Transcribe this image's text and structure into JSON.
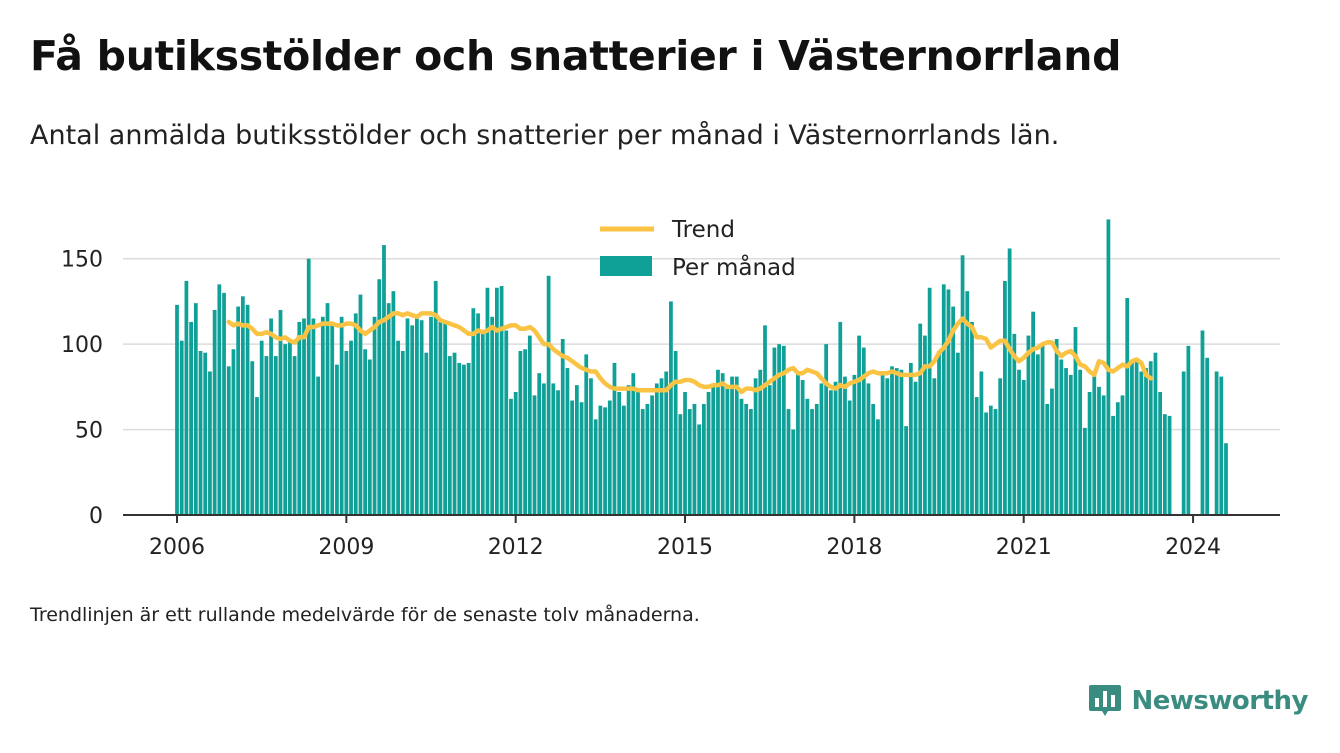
{
  "title": "Få butiksstölder och snatterier i Västernorrland",
  "subtitle": "Antal anmälda butiksstölder och snatterier per månad i Västernorrlands län.",
  "note": "Trendlinjen är ett rullande medelvärde för de senaste tolv månaderna.",
  "brand": {
    "name": "Newsworthy",
    "icon": "bar-chart-speech-bubble-icon",
    "color": "#3a8c80"
  },
  "chart_data": {
    "type": "bar",
    "x_start": "2006-01",
    "x_end": "2024-06",
    "xticks": [
      "2006",
      "2009",
      "2012",
      "2015",
      "2018",
      "2021",
      "2024"
    ],
    "yticks": [
      "0",
      "50",
      "100",
      "150"
    ],
    "ylim": [
      0,
      175
    ],
    "grid": true,
    "legend": {
      "position": "top-center",
      "entries": [
        "Trend",
        "Per månad"
      ]
    },
    "colors": {
      "bars": "#0fa097",
      "trend": "#fbc344",
      "grid": "#dcdcdc",
      "axis": "#333333"
    },
    "series": [
      {
        "name": "Per månad",
        "type": "bar",
        "values": [
          123,
          102,
          137,
          113,
          124,
          96,
          95,
          84,
          120,
          135,
          130,
          87,
          97,
          122,
          128,
          123,
          90,
          69,
          102,
          93,
          115,
          93,
          120,
          100,
          102,
          93,
          113,
          115,
          150,
          115,
          81,
          116,
          124,
          112,
          88,
          116,
          96,
          102,
          118,
          129,
          97,
          91,
          116,
          138,
          158,
          124,
          131,
          102,
          96,
          115,
          111,
          115,
          114,
          95,
          116,
          137,
          115,
          113,
          93,
          95,
          89,
          88,
          89,
          121,
          118,
          106,
          133,
          116,
          133,
          134,
          108,
          68,
          72,
          96,
          97,
          105,
          70,
          83,
          77,
          140,
          77,
          73,
          103,
          86,
          67,
          76,
          66,
          94,
          80,
          56,
          64,
          63,
          67,
          89,
          72,
          64,
          76,
          83,
          72,
          62,
          65,
          70,
          77,
          80,
          84,
          125,
          96,
          59,
          72,
          62,
          65,
          53,
          65,
          72,
          76,
          85,
          83,
          74,
          81,
          81,
          68,
          65,
          62,
          80,
          85,
          111,
          76,
          98,
          100,
          99,
          62,
          50,
          84,
          79,
          68,
          62,
          65,
          77,
          100,
          73,
          78,
          113,
          81,
          67,
          82,
          105,
          98,
          77,
          65,
          56,
          83,
          80,
          87,
          86,
          85,
          52,
          89,
          78,
          112,
          105,
          133,
          80,
          96,
          135,
          132,
          122,
          95,
          152,
          131,
          113,
          69,
          84,
          60,
          64,
          62,
          80,
          137,
          156,
          106,
          85,
          79,
          105,
          119,
          94,
          100,
          65,
          74,
          103,
          91,
          86,
          82,
          110,
          85,
          51,
          72,
          84,
          75,
          70,
          173,
          58,
          66,
          70,
          127,
          90,
          91,
          84,
          86,
          90,
          95,
          72,
          59,
          58,
          null,
          null,
          84,
          99,
          null,
          null,
          108,
          92,
          null,
          84,
          81,
          42
        ]
      },
      {
        "name": "Trend",
        "type": "line",
        "values": [
          null,
          null,
          null,
          null,
          null,
          null,
          null,
          null,
          null,
          null,
          null,
          113,
          111,
          112,
          111,
          111,
          109,
          106,
          106,
          107,
          106,
          104,
          103,
          104,
          102,
          101,
          104,
          104,
          110,
          110,
          111,
          112,
          112,
          112,
          111,
          111,
          112,
          112,
          111,
          108,
          106,
          108,
          110,
          113,
          114,
          116,
          118,
          118,
          117,
          118,
          117,
          116,
          118,
          118,
          118,
          117,
          114,
          113,
          112,
          111,
          110,
          108,
          106,
          106,
          108,
          107,
          108,
          110,
          108,
          109,
          110,
          111,
          111,
          109,
          109,
          110,
          108,
          104,
          100,
          100,
          97,
          95,
          93,
          92,
          90,
          88,
          86,
          85,
          84,
          84,
          80,
          77,
          75,
          74,
          74,
          74,
          74,
          74,
          73,
          73,
          73,
          73,
          73,
          73,
          73,
          76,
          78,
          78,
          79,
          79,
          78,
          76,
          75,
          75,
          76,
          76,
          77,
          75,
          75,
          75,
          72,
          74,
          74,
          73,
          74,
          76,
          78,
          80,
          82,
          83,
          85,
          86,
          83,
          83,
          85,
          84,
          83,
          80,
          77,
          75,
          74,
          76,
          75,
          77,
          78,
          79,
          81,
          83,
          84,
          83,
          83,
          83,
          84,
          83,
          82,
          82,
          82,
          82,
          83,
          87,
          87,
          90,
          95,
          98,
          102,
          108,
          112,
          115,
          112,
          110,
          104,
          104,
          103,
          98,
          100,
          102,
          102,
          97,
          93,
          90,
          92,
          95,
          97,
          98,
          100,
          101,
          101,
          96,
          93,
          95,
          96,
          93,
          88,
          87,
          84,
          82,
          90,
          89,
          85,
          84,
          86,
          88,
          87,
          90,
          91,
          89,
          82,
          80,
          null,
          null,
          null,
          null,
          null,
          null,
          null,
          null,
          null,
          null,
          null,
          null,
          null,
          null,
          null,
          null
        ]
      }
    ]
  }
}
